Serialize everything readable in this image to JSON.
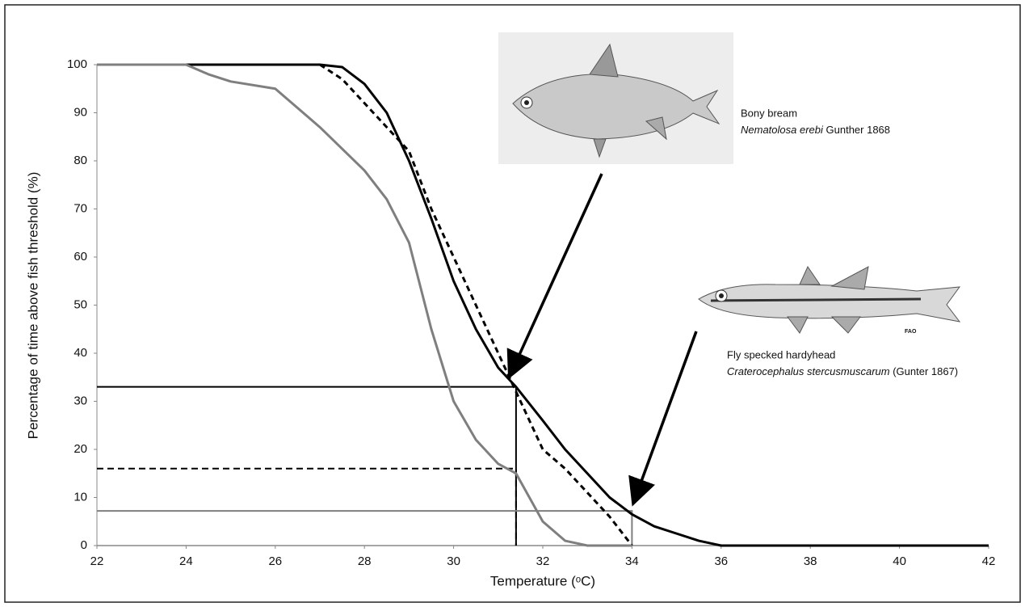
{
  "chart_data": {
    "type": "line",
    "xlabel": "Temperature (ᵒC)",
    "ylabel": "Percentage of time above fish threshold (%)",
    "xlim": [
      22,
      42
    ],
    "ylim": [
      0,
      100
    ],
    "xticks": [
      22,
      24,
      26,
      28,
      30,
      32,
      34,
      36,
      38,
      40,
      42
    ],
    "yticks": [
      0,
      10,
      20,
      30,
      40,
      50,
      60,
      70,
      80,
      90,
      100
    ],
    "grid": false,
    "series": [
      {
        "color": "#000000",
        "dash": false,
        "x": [
          22,
          27,
          27.5,
          28,
          28.5,
          29,
          29.5,
          30,
          30.5,
          31,
          31.4,
          32,
          32.5,
          33,
          33.5,
          34,
          34.5,
          35,
          35.5,
          36,
          42
        ],
        "values": [
          100,
          100,
          99.5,
          96,
          90,
          80,
          68,
          55,
          45,
          37,
          33,
          26,
          20,
          15,
          10,
          6.5,
          4,
          2.5,
          1,
          0,
          0
        ]
      },
      {
        "color": "#000000",
        "dash": true,
        "x": [
          22,
          27,
          27.5,
          28,
          28.5,
          29,
          29.5,
          30,
          30.5,
          31,
          31.4,
          32,
          32.5,
          33,
          33.5,
          34
        ],
        "values": [
          100,
          100,
          97,
          92,
          87,
          82,
          70,
          60,
          50,
          40,
          32,
          20,
          16,
          11,
          6,
          0
        ]
      },
      {
        "color": "#7f7f7f",
        "dash": false,
        "x": [
          22,
          24,
          24.5,
          25,
          26,
          27,
          28,
          28.5,
          29,
          29.5,
          30,
          30.5,
          31,
          31.4,
          32,
          32.5,
          33,
          34
        ],
        "values": [
          100,
          100,
          98,
          96.5,
          95,
          87,
          78,
          72,
          63,
          45,
          30,
          22,
          17,
          15,
          5,
          1,
          0,
          0
        ]
      }
    ],
    "reference_lines": [
      {
        "x": 31.4,
        "y": 33,
        "color": "#000000",
        "dash": false
      },
      {
        "x": 31.4,
        "y": 16,
        "color": "#000000",
        "dash": true
      },
      {
        "x": 34,
        "y": 7.2,
        "color": "#7f7f7f",
        "dash": false
      }
    ],
    "annotations": [
      {
        "common": "Bony bream",
        "species": "Nematolosa erebi",
        "author": "Gunther 1868"
      },
      {
        "common": "Fly specked hardyhead",
        "species": "Craterocephalus stercusmuscarum",
        "author": "(Gunter 1867)"
      }
    ],
    "image_credit": "FAO"
  }
}
